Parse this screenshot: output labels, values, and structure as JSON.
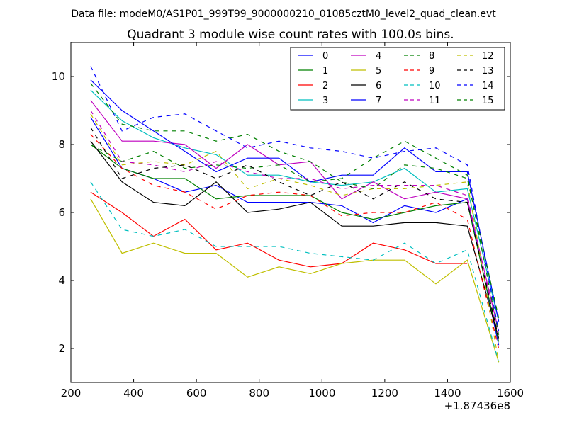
{
  "figure": {
    "suptitle": "Data file: modeM0/AS1P01_999T99_9000000210_01085cztM0_level2_quad_clean.evt"
  },
  "chart_data": {
    "type": "line",
    "title": "Quadrant 3 module wise count rates with 100.0s bins.",
    "xlabel": "",
    "ylabel": "",
    "xlim": [
      200,
      1600
    ],
    "ylim": [
      1,
      11
    ],
    "x_offset_label": "+1.87436e8",
    "xticks": [
      200,
      400,
      600,
      800,
      1000,
      1200,
      1400,
      1600
    ],
    "yticks": [
      2,
      4,
      6,
      8,
      10
    ],
    "grid": false,
    "legend_position": "top-right",
    "legend_columns": 4,
    "x": [
      263,
      363,
      463,
      563,
      663,
      763,
      863,
      963,
      1063,
      1163,
      1263,
      1363,
      1463,
      1563
    ],
    "series": [
      {
        "name": "0",
        "color": "#0000ff",
        "style": "solid",
        "values": [
          8.8,
          7.3,
          7.0,
          6.6,
          6.8,
          6.3,
          6.3,
          6.3,
          6.2,
          5.7,
          6.2,
          6.0,
          6.4,
          2.1
        ]
      },
      {
        "name": "1",
        "color": "#008000",
        "style": "solid",
        "values": [
          8.0,
          7.3,
          7.0,
          7.0,
          6.4,
          6.5,
          6.5,
          6.5,
          6.0,
          5.8,
          6.0,
          6.2,
          6.3,
          2.2
        ]
      },
      {
        "name": "2",
        "color": "#ff0000",
        "style": "solid",
        "values": [
          6.6,
          6.0,
          5.3,
          5.8,
          4.9,
          5.1,
          4.6,
          4.4,
          4.5,
          5.1,
          4.9,
          4.5,
          4.5,
          null
        ]
      },
      {
        "name": "3",
        "color": "#00bfbf",
        "style": "solid",
        "values": [
          9.6,
          8.7,
          8.2,
          7.9,
          7.7,
          7.1,
          7.1,
          6.9,
          6.8,
          6.9,
          7.3,
          6.6,
          6.7,
          2.8
        ]
      },
      {
        "name": "4",
        "color": "#bf00bf",
        "style": "solid",
        "values": [
          9.3,
          8.1,
          8.1,
          8.0,
          7.3,
          8.0,
          7.4,
          7.5,
          6.4,
          6.9,
          6.4,
          6.6,
          6.4,
          2.5
        ]
      },
      {
        "name": "5",
        "color": "#bfbf00",
        "style": "solid",
        "values": [
          6.4,
          4.8,
          5.1,
          4.8,
          4.8,
          4.1,
          4.4,
          4.2,
          4.5,
          4.6,
          4.6,
          3.9,
          4.6,
          1.6
        ]
      },
      {
        "name": "6",
        "color": "#000000",
        "style": "solid",
        "values": [
          8.1,
          6.9,
          6.3,
          6.2,
          6.9,
          6.0,
          6.1,
          6.3,
          5.6,
          5.6,
          5.7,
          5.7,
          5.6,
          2.3
        ]
      },
      {
        "name": "7",
        "color": "#0000ff",
        "style": "solid",
        "values": [
          9.9,
          9.0,
          8.4,
          7.8,
          7.2,
          7.6,
          7.6,
          6.9,
          7.1,
          7.1,
          7.9,
          7.2,
          7.2,
          2.8
        ]
      },
      {
        "name": "8",
        "color": "#008000",
        "style": "dashed",
        "values": [
          8.0,
          7.5,
          7.8,
          7.3,
          7.4,
          7.3,
          7.4,
          6.9,
          7.0,
          7.6,
          8.1,
          7.6,
          7.1,
          2.4
        ]
      },
      {
        "name": "9",
        "color": "#ff0000",
        "style": "dashed",
        "values": [
          8.3,
          7.3,
          6.8,
          6.6,
          6.1,
          6.5,
          6.6,
          6.5,
          5.9,
          6.0,
          6.0,
          6.3,
          5.8,
          2.0
        ]
      },
      {
        "name": "10",
        "color": "#00bfbf",
        "style": "dashed",
        "values": [
          6.9,
          5.5,
          5.3,
          5.5,
          5.0,
          5.0,
          5.0,
          4.8,
          4.7,
          4.6,
          5.1,
          4.5,
          4.9,
          1.6
        ]
      },
      {
        "name": "11",
        "color": "#bf00bf",
        "style": "dashed",
        "values": [
          9.0,
          7.5,
          7.4,
          7.2,
          7.5,
          7.2,
          7.0,
          7.0,
          6.7,
          6.8,
          6.8,
          6.8,
          6.5,
          2.3
        ]
      },
      {
        "name": "12",
        "color": "#bfbf00",
        "style": "dashed",
        "values": [
          8.9,
          7.4,
          7.5,
          7.4,
          7.8,
          6.7,
          7.0,
          6.8,
          6.5,
          6.7,
          6.7,
          6.8,
          6.9,
          1.6
        ]
      },
      {
        "name": "13",
        "color": "#000000",
        "style": "dashed",
        "values": [
          8.5,
          7.0,
          7.3,
          7.4,
          7.0,
          7.4,
          6.9,
          6.5,
          6.9,
          6.4,
          6.9,
          6.4,
          6.3,
          2.3
        ]
      },
      {
        "name": "14",
        "color": "#0000ff",
        "style": "dashed",
        "values": [
          10.3,
          8.4,
          8.8,
          8.9,
          8.4,
          7.9,
          8.1,
          7.9,
          7.8,
          7.6,
          7.8,
          7.9,
          7.4,
          2.5
        ]
      },
      {
        "name": "15",
        "color": "#008000",
        "style": "dashed",
        "values": [
          9.8,
          8.6,
          8.4,
          8.4,
          8.1,
          8.3,
          7.8,
          7.5,
          6.9,
          6.7,
          7.4,
          7.3,
          7.0,
          2.9
        ]
      }
    ]
  }
}
